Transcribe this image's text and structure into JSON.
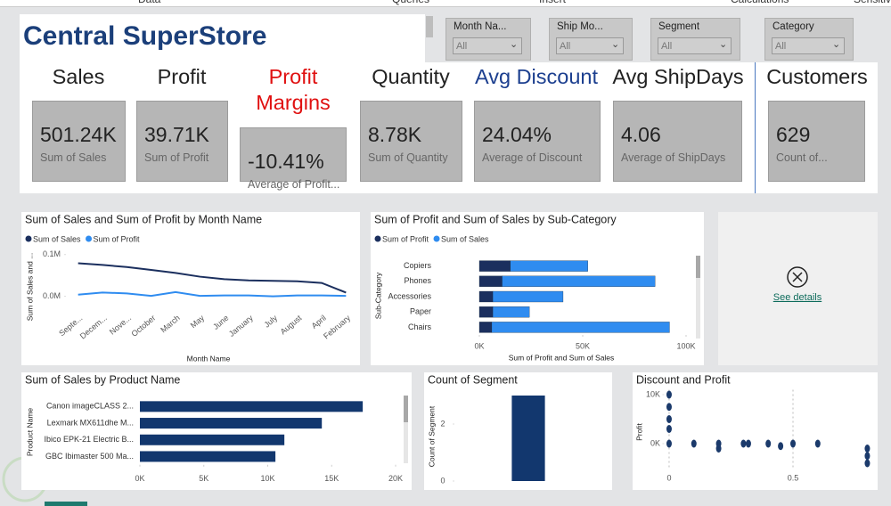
{
  "menu": [
    "Data",
    "Queries",
    "Insert",
    "Calculations",
    "Sensitiv"
  ],
  "header": {
    "title": "Central SuperStore"
  },
  "filters": [
    {
      "label": "Month Na...",
      "value": "All"
    },
    {
      "label": "Ship Mo...",
      "value": "All"
    },
    {
      "label": "Segment",
      "value": "All"
    },
    {
      "label": "Category",
      "value": "All"
    }
  ],
  "kpis": [
    {
      "title": "Sales",
      "value": "501.24K",
      "caption": "Sum of Sales",
      "color": "#222222"
    },
    {
      "title": "Profit",
      "value": "39.71K",
      "caption": "Sum of Profit",
      "color": "#222222"
    },
    {
      "title": "Profit Margins",
      "value": "-10.41%",
      "caption": "Average of Profit...",
      "color": "#e01010"
    },
    {
      "title": "Quantity",
      "value": "8.78K",
      "caption": "Sum of Quantity",
      "color": "#222222"
    },
    {
      "title": "Avg Discount",
      "value": "24.04%",
      "caption": "Average of Discount",
      "color": "#1c3f8f"
    },
    {
      "title": "Avg ShipDays",
      "value": "4.06",
      "caption": "Average of ShipDays",
      "color": "#222222"
    },
    {
      "title": "Customers",
      "value": "629",
      "caption": "Count of...",
      "color": "#222222"
    }
  ],
  "details_card": {
    "link": "See details"
  },
  "chart_data": [
    {
      "type": "line",
      "title": "Sum of Sales and Sum of Profit by Month Name",
      "categories": [
        "Septe...",
        "Decem...",
        "Nove...",
        "October",
        "March",
        "May",
        "June",
        "January",
        "July",
        "August",
        "April",
        "February"
      ],
      "series": [
        {
          "name": "Sum of Sales",
          "color": "#1b2f5e",
          "values": [
            79000,
            75000,
            70000,
            63000,
            56000,
            47000,
            41000,
            38000,
            37000,
            36000,
            32000,
            9000
          ]
        },
        {
          "name": "Sum of Profit",
          "color": "#2f8cf0",
          "values": [
            4000,
            9000,
            7000,
            1000,
            10000,
            1000,
            2000,
            2000,
            0,
            2000,
            2000,
            1000
          ]
        }
      ],
      "x_label": "Month Name",
      "y_label": "Sum of Sales and ...",
      "ylim": [
        -20000,
        110000
      ],
      "yticks": [
        {
          "value": 0,
          "label": "0.0M"
        },
        {
          "value": 100000,
          "label": "0.1M"
        }
      ],
      "legend": "top-left"
    },
    {
      "type": "bar",
      "orientation": "horizontal",
      "stacked": true,
      "title": "Sum of Profit and Sum of Sales by Sub-Category",
      "categories": [
        "Copiers",
        "Phones",
        "Accessories",
        "Paper",
        "Chairs"
      ],
      "series": [
        {
          "name": "Sum of Profit",
          "color": "#1b2f5e",
          "values": [
            15000,
            11000,
            6500,
            6500,
            6000
          ]
        },
        {
          "name": "Sum of Sales",
          "color": "#2f8cf0",
          "values": [
            37500,
            74000,
            34000,
            17700,
            86000
          ]
        }
      ],
      "x_label": "Sum of Profit and Sum of Sales",
      "y_label": "Sub-Category",
      "xlim": [
        0,
        100000
      ],
      "xticks": [
        {
          "value": 0,
          "label": "0K"
        },
        {
          "value": 50000,
          "label": "50K"
        },
        {
          "value": 100000,
          "label": "100K"
        }
      ],
      "legend": "top-left"
    },
    {
      "type": "bar",
      "orientation": "horizontal",
      "title": "Sum of Sales by Product Name",
      "categories": [
        "Canon imageCLASS 2...",
        "Lexmark MX611dhe M...",
        "Ibico EPK-21 Electric B...",
        "GBC Ibimaster 500 Ma..."
      ],
      "values": [
        17430,
        14230,
        11300,
        10600
      ],
      "color": "#12376e",
      "y_label": "Product Name",
      "xlim": [
        0,
        20000
      ],
      "xticks": [
        {
          "value": 0,
          "label": "0K"
        },
        {
          "value": 5000,
          "label": "5K"
        },
        {
          "value": 10000,
          "label": "10K"
        },
        {
          "value": 15000,
          "label": "15K"
        },
        {
          "value": 20000,
          "label": "20K"
        }
      ]
    },
    {
      "type": "bar",
      "title": "Count of Segment",
      "categories": [
        null
      ],
      "values": [
        3
      ],
      "color": "#12376e",
      "y_label": "Count of Segment",
      "ylim": [
        0,
        3.2
      ],
      "yticks": [
        0,
        2
      ]
    },
    {
      "type": "scatter",
      "title": "Discount and Profit",
      "x": [
        0,
        0,
        0,
        0,
        0,
        0.1,
        0.2,
        0.2,
        0.3,
        0.32,
        0.4,
        0.45,
        0.5,
        0.6,
        0.8,
        0.8,
        0.8
      ],
      "values": [
        0,
        3000,
        5000,
        7500,
        10000,
        0,
        0,
        -1000,
        0,
        0,
        0,
        -500,
        0,
        0,
        -1000,
        -2500,
        -4000
      ],
      "color": "#1b3a6b",
      "y_label": "Profit",
      "xlim": [
        -0.02,
        0.82
      ],
      "ylim": [
        -5000,
        11000
      ],
      "xticks": [
        0,
        0.5
      ],
      "yticks": [
        {
          "value": 0,
          "label": "0K"
        },
        {
          "value": 10000,
          "label": "10K"
        }
      ],
      "grid": true
    }
  ]
}
